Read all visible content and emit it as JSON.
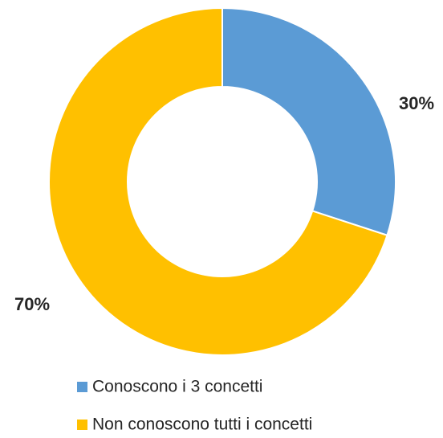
{
  "chart_data": {
    "type": "pie",
    "subtype": "doughnut",
    "categories": [
      "Conoscono i 3 concetti",
      "Non conoscono tutti i concetti"
    ],
    "values": [
      30,
      70
    ],
    "labels": [
      "30%",
      "70%"
    ],
    "colors": [
      "#5B9BD5",
      "#FFC000"
    ],
    "legend_position": "bottom",
    "title": ""
  }
}
